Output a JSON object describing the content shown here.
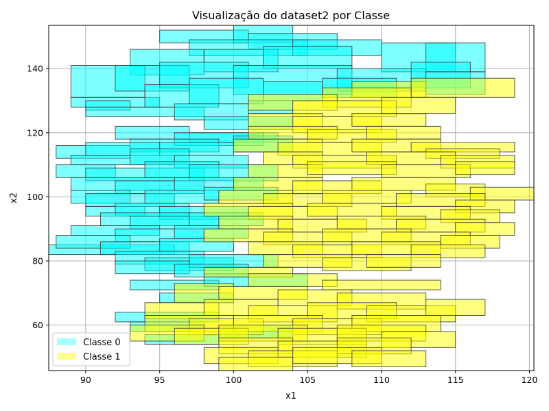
{
  "chart_data": {
    "type": "rectangles",
    "title": "Visualização do dataset2 por Classe",
    "xlabel": "x1",
    "ylabel": "x2",
    "xlim": [
      87.5,
      120.3
    ],
    "ylim": [
      45.8,
      153.5
    ],
    "xticks": [
      90,
      95,
      100,
      105,
      110,
      115,
      120
    ],
    "yticks": [
      60,
      80,
      100,
      120,
      140
    ],
    "grid": true,
    "legend": {
      "placement": "lower-left",
      "entries": [
        "Classe 0",
        "Classe 1"
      ]
    },
    "colors": {
      "Classe 0": "#00ffff",
      "Classe 1": "#ffff00",
      "edge": "#404040"
    },
    "series": [
      {
        "name": "Classe 0",
        "rects": [
          [
            95.0,
            152.0,
            101.0,
            148.0
          ],
          [
            100.0,
            154.0,
            104.0,
            148.0
          ],
          [
            101.0,
            151.0,
            107.0,
            146.0
          ],
          [
            97.0,
            149.0,
            105.0,
            144.0
          ],
          [
            104.0,
            149.0,
            110.0,
            144.0
          ],
          [
            110.0,
            148.0,
            115.0,
            139.0
          ],
          [
            113.0,
            148.0,
            117.0,
            139.0
          ],
          [
            93.0,
            146.0,
            98.0,
            138.0
          ],
          [
            98.0,
            146.0,
            103.0,
            139.0
          ],
          [
            102.0,
            147.0,
            108.0,
            140.0
          ],
          [
            89.0,
            141.0,
            94.0,
            131.0
          ],
          [
            92.0,
            141.0,
            97.0,
            133.0
          ],
          [
            95.0,
            142.0,
            101.0,
            134.0
          ],
          [
            100.0,
            141.0,
            108.0,
            132.0
          ],
          [
            107.0,
            140.0,
            113.0,
            133.0
          ],
          [
            112.0,
            142.0,
            116.0,
            134.0
          ],
          [
            89.0,
            131.0,
            95.0,
            128.0
          ],
          [
            90.0,
            130.0,
            93.0,
            127.0
          ],
          [
            94.0,
            135.0,
            99.0,
            128.0
          ],
          [
            97.0,
            137.0,
            102.0,
            129.0
          ],
          [
            102.0,
            136.0,
            106.0,
            130.0
          ],
          [
            106.0,
            137.0,
            111.0,
            131.0
          ],
          [
            113.0,
            139.0,
            117.0,
            132.0
          ],
          [
            90.0,
            128.0,
            98.0,
            125.0
          ],
          [
            96.0,
            129.0,
            101.0,
            124.0
          ],
          [
            101.0,
            130.0,
            104.0,
            126.0
          ],
          [
            98.0,
            125.0,
            104.0,
            121.0
          ],
          [
            97.0,
            120.0,
            103.0,
            117.0
          ],
          [
            92.0,
            122.0,
            97.0,
            118.0
          ],
          [
            96.0,
            120.0,
            102.0,
            116.0
          ],
          [
            93.0,
            118.0,
            99.0,
            114.0
          ],
          [
            100.0,
            119.0,
            104.0,
            114.0
          ],
          [
            88.0,
            116.0,
            93.0,
            112.0
          ],
          [
            90.0,
            117.0,
            95.0,
            113.0
          ],
          [
            95.0,
            117.0,
            100.0,
            113.0
          ],
          [
            89.0,
            113.0,
            96.0,
            110.0
          ],
          [
            93.0,
            115.0,
            97.0,
            110.0
          ],
          [
            96.0,
            113.0,
            101.0,
            109.0
          ],
          [
            88.0,
            110.0,
            92.0,
            106.0
          ],
          [
            90.0,
            109.0,
            98.0,
            105.0
          ],
          [
            94.0,
            111.0,
            99.0,
            106.0
          ],
          [
            97.0,
            110.0,
            103.0,
            105.0
          ],
          [
            89.0,
            106.0,
            96.0,
            102.0
          ],
          [
            92.0,
            105.0,
            98.0,
            101.0
          ],
          [
            96.0,
            106.0,
            102.0,
            102.0
          ],
          [
            89.0,
            102.0,
            93.0,
            98.0
          ],
          [
            90.0,
            101.0,
            96.0,
            97.0
          ],
          [
            94.0,
            102.0,
            99.0,
            98.0
          ],
          [
            98.0,
            103.0,
            103.0,
            99.0
          ],
          [
            90.0,
            97.0,
            94.0,
            94.0
          ],
          [
            92.0,
            98.0,
            97.0,
            94.0
          ],
          [
            95.0,
            97.0,
            101.0,
            93.0
          ],
          [
            91.0,
            95.0,
            97.0,
            91.0
          ],
          [
            93.0,
            94.0,
            99.0,
            90.0
          ],
          [
            97.0,
            95.0,
            102.0,
            91.0
          ],
          [
            89.0,
            91.0,
            95.0,
            88.0
          ],
          [
            92.0,
            90.0,
            98.0,
            86.0
          ],
          [
            96.0,
            91.0,
            101.0,
            87.0
          ],
          [
            86.0,
            85.0,
            96.0,
            82.0
          ],
          [
            88.0,
            88.0,
            93.0,
            84.0
          ],
          [
            91.0,
            86.0,
            97.0,
            82.0
          ],
          [
            95.0,
            87.0,
            100.0,
            83.0
          ],
          [
            92.0,
            83.0,
            98.0,
            79.0
          ],
          [
            94.0,
            81.0,
            100.0,
            77.0
          ],
          [
            97.0,
            82.0,
            103.0,
            78.0
          ],
          [
            92.0,
            80.0,
            97.0,
            76.0
          ],
          [
            96.0,
            79.0,
            101.0,
            75.0
          ],
          [
            93.0,
            74.0,
            99.0,
            71.0
          ],
          [
            98.0,
            76.0,
            105.0,
            72.0
          ],
          [
            95.0,
            70.0,
            100.0,
            67.0
          ],
          [
            92.0,
            64.0,
            99.0,
            61.0
          ],
          [
            93.0,
            61.0,
            98.0,
            58.0
          ],
          [
            94.0,
            57.0,
            99.0,
            54.0
          ],
          [
            99.0,
            60.0,
            104.0,
            56.0
          ]
        ]
      },
      {
        "name": "Classe 1",
        "rects": [
          [
            108.0,
            136.0,
            113.0,
            131.0
          ],
          [
            112.0,
            137.0,
            119.0,
            131.0
          ],
          [
            106.0,
            134.0,
            112.0,
            128.0
          ],
          [
            101.0,
            132.0,
            107.0,
            127.0
          ],
          [
            104.0,
            130.0,
            111.0,
            125.0
          ],
          [
            110.0,
            131.0,
            115.0,
            126.0
          ],
          [
            101.0,
            126.0,
            106.0,
            121.0
          ],
          [
            104.0,
            125.0,
            110.0,
            120.0
          ],
          [
            108.0,
            126.0,
            113.0,
            122.0
          ],
          [
            101.0,
            122.0,
            107.0,
            118.0
          ],
          [
            105.0,
            121.0,
            111.0,
            117.0
          ],
          [
            109.0,
            122.0,
            114.0,
            118.0
          ],
          [
            100.0,
            118.0,
            106.0,
            114.0
          ],
          [
            103.0,
            117.0,
            110.0,
            113.0
          ],
          [
            108.0,
            118.0,
            114.0,
            114.0
          ],
          [
            112.0,
            117.0,
            119.0,
            114.0
          ],
          [
            113.0,
            115.0,
            118.0,
            112.0
          ],
          [
            102.0,
            114.0,
            106.0,
            110.0
          ],
          [
            104.0,
            113.0,
            111.0,
            109.0
          ],
          [
            109.0,
            114.0,
            115.0,
            110.0
          ],
          [
            114.0,
            113.0,
            119.0,
            109.0
          ],
          [
            101.0,
            110.0,
            106.0,
            106.0
          ],
          [
            105.0,
            111.0,
            111.0,
            107.0
          ],
          [
            110.0,
            110.0,
            116.0,
            106.0
          ],
          [
            115.0,
            111.0,
            119.0,
            107.0
          ],
          [
            100.0,
            106.0,
            106.0,
            102.0
          ],
          [
            104.0,
            105.0,
            110.0,
            101.0
          ],
          [
            108.0,
            106.0,
            115.0,
            102.0
          ],
          [
            113.0,
            104.0,
            117.0,
            100.0
          ],
          [
            116.0,
            103.0,
            121.0,
            99.0
          ],
          [
            99.0,
            102.0,
            104.0,
            98.0
          ],
          [
            102.0,
            101.0,
            108.0,
            97.0
          ],
          [
            106.0,
            102.0,
            112.0,
            98.0
          ],
          [
            111.0,
            101.0,
            117.0,
            97.0
          ],
          [
            115.0,
            99.0,
            119.0,
            95.0
          ],
          [
            98.0,
            98.0,
            104.0,
            94.0
          ],
          [
            101.0,
            97.0,
            107.0,
            93.0
          ],
          [
            105.0,
            98.0,
            111.0,
            94.0
          ],
          [
            110.0,
            97.0,
            116.0,
            93.0
          ],
          [
            114.0,
            96.0,
            118.0,
            92.0
          ],
          [
            99.0,
            94.0,
            104.0,
            90.0
          ],
          [
            103.0,
            93.0,
            109.0,
            89.0
          ],
          [
            107.0,
            94.0,
            113.0,
            90.0
          ],
          [
            111.0,
            93.0,
            117.0,
            89.0
          ],
          [
            115.0,
            92.0,
            119.0,
            88.0
          ],
          [
            98.0,
            90.0,
            104.0,
            86.0
          ],
          [
            102.0,
            89.0,
            108.0,
            85.0
          ],
          [
            106.0,
            90.0,
            112.0,
            86.0
          ],
          [
            110.0,
            89.0,
            116.0,
            85.0
          ],
          [
            114.0,
            88.0,
            118.0,
            84.0
          ],
          [
            101.0,
            86.0,
            106.0,
            82.0
          ],
          [
            104.0,
            85.0,
            110.0,
            81.0
          ],
          [
            108.0,
            86.0,
            114.0,
            82.0
          ],
          [
            112.0,
            85.0,
            117.0,
            81.0
          ],
          [
            102.0,
            82.0,
            108.0,
            78.0
          ],
          [
            106.0,
            81.0,
            112.0,
            77.0
          ],
          [
            109.0,
            82.0,
            114.0,
            78.0
          ],
          [
            98.0,
            78.0,
            104.0,
            75.0
          ],
          [
            101.0,
            76.0,
            107.0,
            72.0
          ],
          [
            106.0,
            74.0,
            114.0,
            71.0
          ],
          [
            96.0,
            73.0,
            100.0,
            67.0
          ],
          [
            99.0,
            72.0,
            105.0,
            68.0
          ],
          [
            103.0,
            71.0,
            108.0,
            66.0
          ],
          [
            107.0,
            70.0,
            113.0,
            65.0
          ],
          [
            94.0,
            67.0,
            99.0,
            62.0
          ],
          [
            98.0,
            68.0,
            103.0,
            63.0
          ],
          [
            101.0,
            66.0,
            107.0,
            61.0
          ],
          [
            105.0,
            67.0,
            111.0,
            62.0
          ],
          [
            109.0,
            66.0,
            115.0,
            61.0
          ],
          [
            113.0,
            68.0,
            117.0,
            63.0
          ],
          [
            94.0,
            63.0,
            100.0,
            58.0
          ],
          [
            97.0,
            62.0,
            102.0,
            57.0
          ],
          [
            100.0,
            63.0,
            106.0,
            58.0
          ],
          [
            104.0,
            62.0,
            110.0,
            57.0
          ],
          [
            108.0,
            63.0,
            114.0,
            58.0
          ],
          [
            93.0,
            60.0,
            98.0,
            55.0
          ],
          [
            96.0,
            59.0,
            101.0,
            54.0
          ],
          [
            99.0,
            60.0,
            105.0,
            55.0
          ],
          [
            103.0,
            59.0,
            109.0,
            54.0
          ],
          [
            107.0,
            60.0,
            113.0,
            55.0
          ],
          [
            110.0,
            58.0,
            115.0,
            53.0
          ],
          [
            99.0,
            56.0,
            104.0,
            51.0
          ],
          [
            103.0,
            55.0,
            109.0,
            50.0
          ],
          [
            107.0,
            56.0,
            112.0,
            51.0
          ],
          [
            98.0,
            53.0,
            103.0,
            48.0
          ],
          [
            101.0,
            52.0,
            107.0,
            47.0
          ],
          [
            104.0,
            53.0,
            110.0,
            48.0
          ],
          [
            108.0,
            52.0,
            113.0,
            47.0
          ],
          [
            99.0,
            50.0,
            104.0,
            45.0
          ]
        ]
      }
    ]
  }
}
